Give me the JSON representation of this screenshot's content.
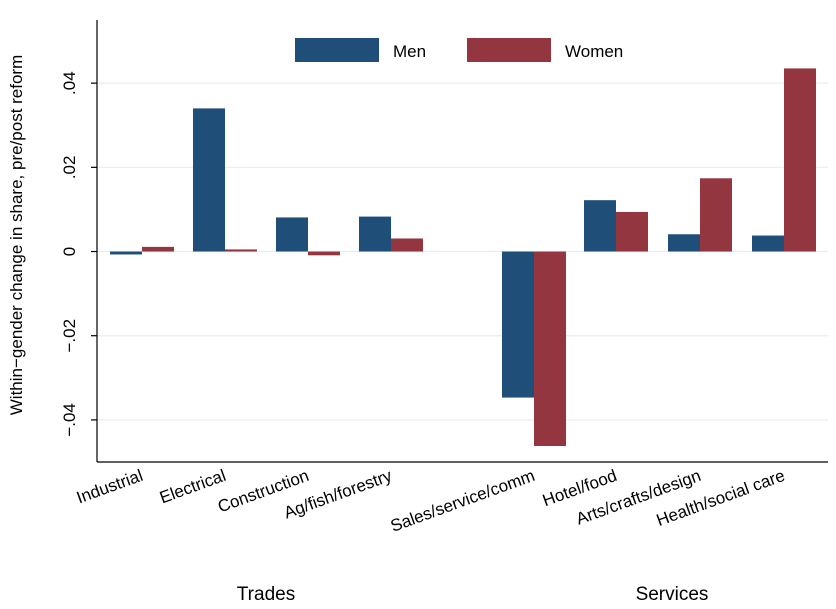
{
  "chart_data": {
    "type": "bar",
    "ylabel": "Within−gender change in share, pre/post reform",
    "ylim": [
      -0.05,
      0.055
    ],
    "yticks": [
      -0.04,
      -0.02,
      0,
      0.02,
      0.04
    ],
    "ytick_labels": [
      "−.04",
      "−.02",
      "0",
      ".02",
      ".04"
    ],
    "grid": true,
    "legend_placement": "top-center",
    "categories": [
      "Industrial",
      "Electrical",
      "Construction",
      "Ag/fish/forestry",
      "Sales/service/comm",
      "Hotel/food",
      "Arts/crafts/design",
      "Health/social care"
    ],
    "groups": [
      {
        "label": "Trades",
        "categories": [
          "Industrial",
          "Electrical",
          "Construction",
          "Ag/fish/forestry"
        ]
      },
      {
        "label": "Services",
        "categories": [
          "Sales/service/comm",
          "Hotel/food",
          "Arts/crafts/design",
          "Health/social care"
        ]
      }
    ],
    "series": [
      {
        "name": "Men",
        "color": "#1f4e79",
        "values": [
          -0.0007,
          0.034,
          0.0081,
          0.0083,
          -0.0347,
          0.0122,
          0.0041,
          0.0038
        ]
      },
      {
        "name": "Women",
        "color": "#93363f",
        "values": [
          0.0011,
          0.0005,
          -0.0009,
          0.0031,
          -0.0462,
          0.0094,
          0.0174,
          0.0435
        ]
      }
    ]
  }
}
